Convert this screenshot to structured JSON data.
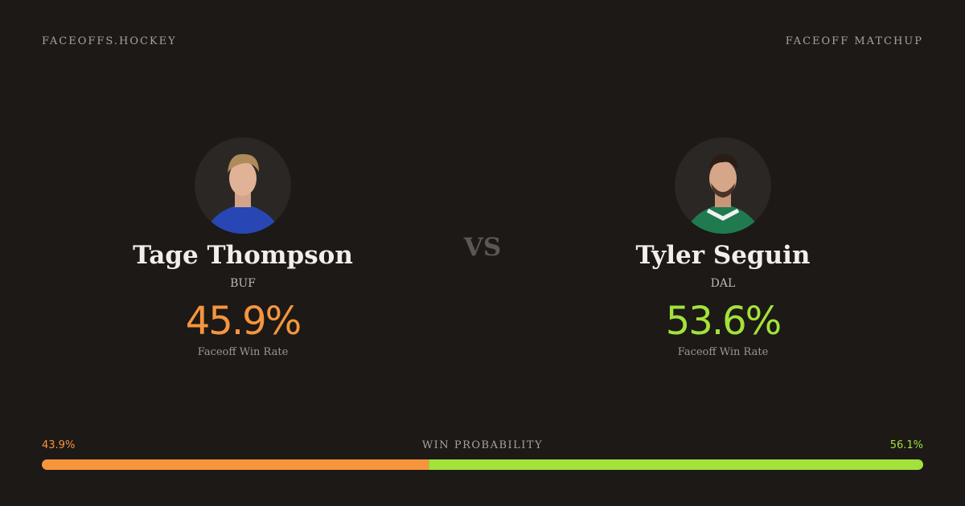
{
  "header": {
    "brand": "FACEOFFS.HOCKEY",
    "page": "FACEOFF MATCHUP"
  },
  "vs": "VS",
  "players": [
    {
      "name": "Tage Thompson",
      "team": "BUF",
      "win_rate": "45.9%",
      "win_rate_label": "Faceoff Win Rate",
      "color": "#f7953d"
    },
    {
      "name": "Tyler Seguin",
      "team": "DAL",
      "win_rate": "53.6%",
      "win_rate_label": "Faceoff Win Rate",
      "color": "#a3e23a"
    }
  ],
  "win_probability": {
    "label": "WIN PROBABILITY",
    "left": {
      "value": 43.9,
      "label": "43.9%"
    },
    "right": {
      "value": 56.1,
      "label": "56.1%"
    }
  }
}
